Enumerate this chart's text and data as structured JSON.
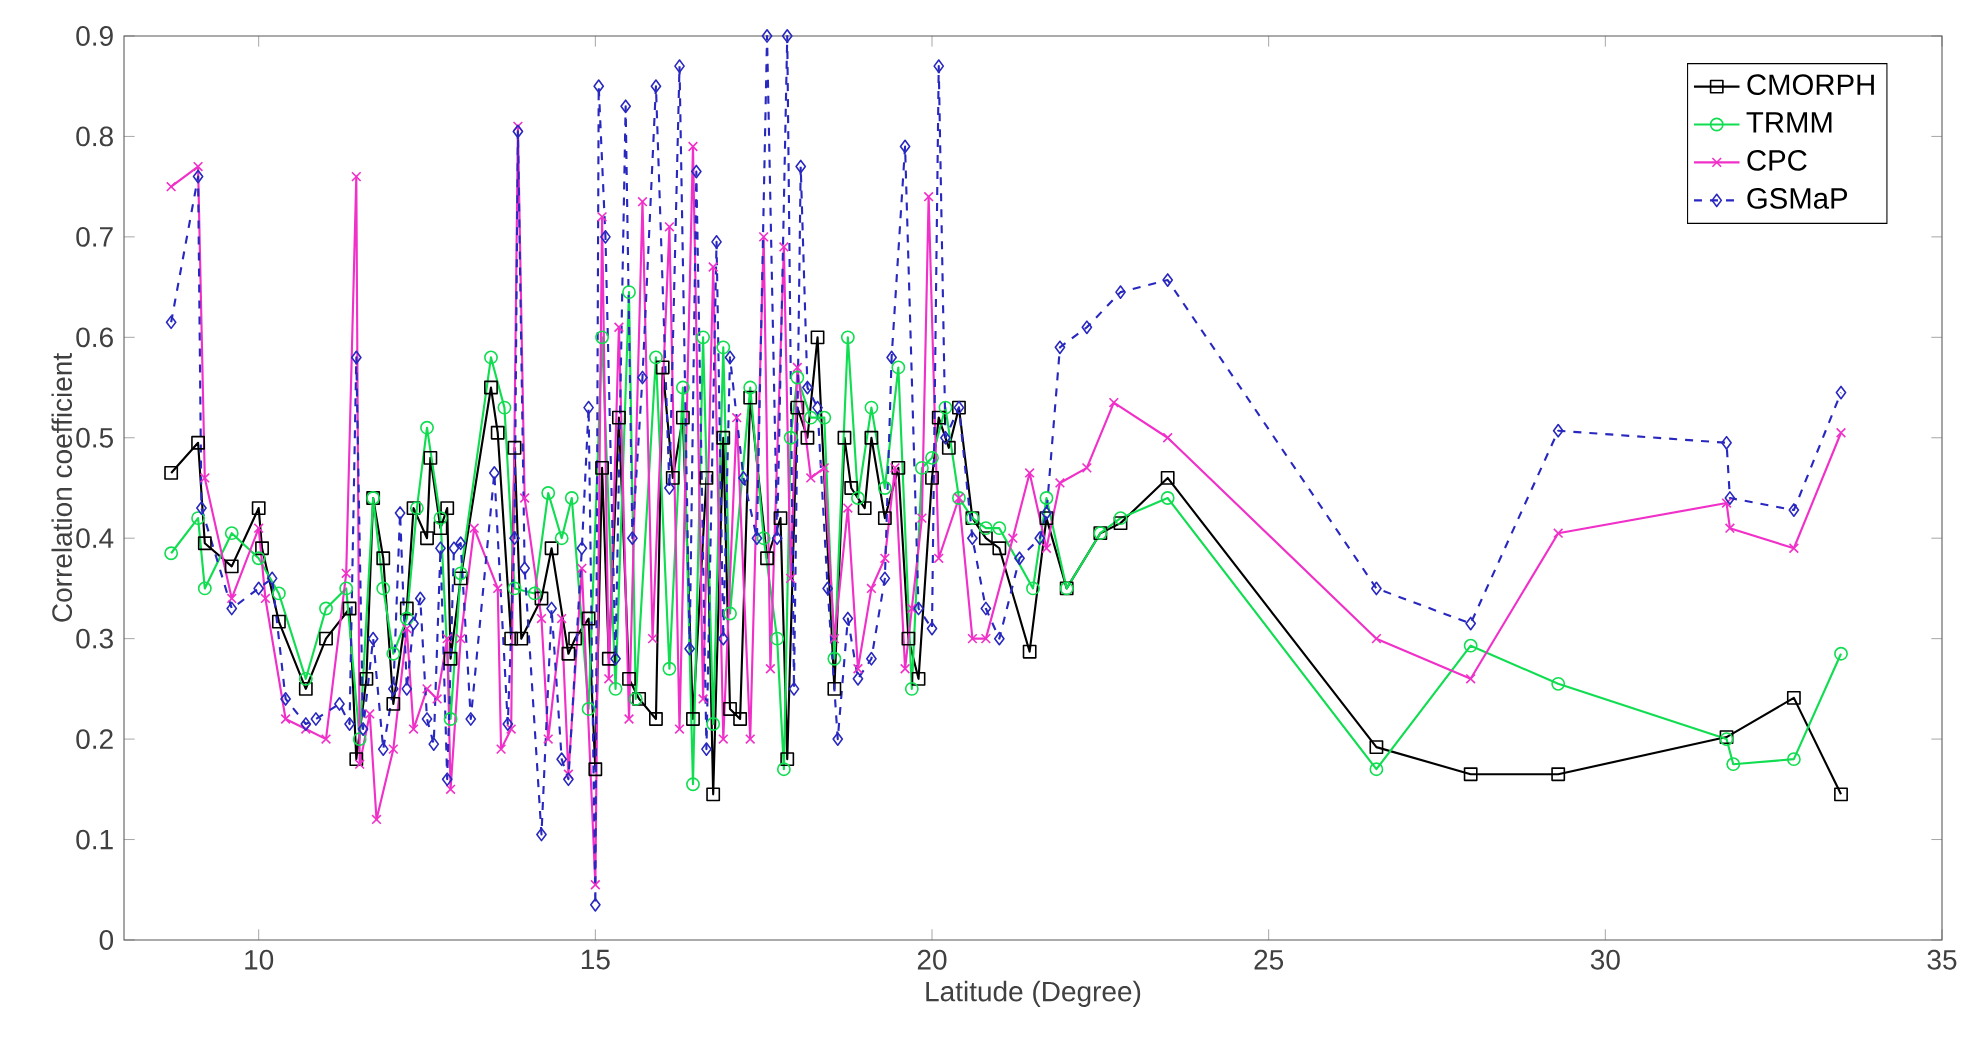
{
  "chart_data": {
    "type": "line",
    "xlabel": "Latitude (Degree)",
    "ylabel": "Correlation coefficient",
    "xlim": [
      8,
      35
    ],
    "ylim": [
      0,
      0.9
    ],
    "xticks": [
      10,
      15,
      20,
      25,
      30,
      35
    ],
    "yticks": [
      0,
      0.1,
      0.2,
      0.3,
      0.4,
      0.5,
      0.6,
      0.7,
      0.8,
      0.9
    ],
    "legend": "top right",
    "series": [
      {
        "name": "CMORPH",
        "color": "#000000",
        "marker": "square",
        "line_style": "solid",
        "x": [
          8.7,
          9.1,
          9.2,
          9.6,
          10.0,
          10.05,
          10.3,
          10.7,
          11.0,
          11.35,
          11.45,
          11.6,
          11.7,
          11.85,
          12.0,
          12.2,
          12.3,
          12.5,
          12.55,
          12.7,
          12.8,
          12.85,
          13.0,
          13.45,
          13.55,
          13.75,
          13.8,
          13.9,
          14.2,
          14.35,
          14.6,
          14.7,
          14.9,
          15.0,
          15.1,
          15.2,
          15.35,
          15.5,
          15.65,
          15.9,
          16.0,
          16.15,
          16.3,
          16.45,
          16.65,
          16.75,
          16.9,
          17.0,
          17.15,
          17.3,
          17.55,
          17.75,
          17.85,
          18.0,
          18.15,
          18.3,
          18.55,
          18.7,
          18.8,
          19.0,
          19.1,
          19.3,
          19.5,
          19.65,
          19.8,
          20.0,
          20.1,
          20.25,
          20.4,
          20.6,
          20.8,
          21.0,
          21.45,
          21.7,
          22.0,
          22.5,
          22.8,
          23.5,
          26.6,
          28.0,
          29.3,
          31.8,
          32.8,
          33.5
        ],
        "values": [
          0.465,
          0.495,
          0.395,
          0.372,
          0.43,
          0.39,
          0.317,
          0.25,
          0.3,
          0.33,
          0.18,
          0.26,
          0.44,
          0.38,
          0.235,
          0.33,
          0.43,
          0.4,
          0.48,
          0.41,
          0.43,
          0.28,
          0.36,
          0.55,
          0.505,
          0.3,
          0.49,
          0.3,
          0.34,
          0.39,
          0.285,
          0.3,
          0.32,
          0.17,
          0.47,
          0.28,
          0.52,
          0.26,
          0.24,
          0.22,
          0.57,
          0.46,
          0.52,
          0.22,
          0.46,
          0.145,
          0.5,
          0.23,
          0.22,
          0.54,
          0.38,
          0.42,
          0.18,
          0.53,
          0.5,
          0.6,
          0.25,
          0.5,
          0.45,
          0.43,
          0.5,
          0.42,
          0.47,
          0.3,
          0.26,
          0.46,
          0.52,
          0.49,
          0.53,
          0.42,
          0.4,
          0.39,
          0.287,
          0.42,
          0.35,
          0.405,
          0.415,
          0.46,
          0.192,
          0.165,
          0.165,
          0.202,
          0.241,
          0.145
        ]
      },
      {
        "name": "TRMM",
        "color": "#10dd50",
        "marker": "circle",
        "line_style": "solid",
        "x": [
          8.7,
          9.1,
          9.2,
          9.6,
          10.0,
          10.3,
          10.7,
          11.0,
          11.3,
          11.5,
          11.7,
          11.85,
          12.0,
          12.2,
          12.35,
          12.5,
          12.7,
          12.85,
          13.0,
          13.45,
          13.65,
          13.8,
          14.1,
          14.3,
          14.5,
          14.65,
          14.9,
          15.1,
          15.3,
          15.5,
          15.6,
          15.9,
          16.1,
          16.3,
          16.45,
          16.6,
          16.75,
          16.9,
          17.0,
          17.3,
          17.5,
          17.7,
          17.8,
          17.9,
          18.0,
          18.2,
          18.4,
          18.55,
          18.75,
          18.9,
          19.1,
          19.3,
          19.5,
          19.7,
          19.85,
          20.0,
          20.2,
          20.4,
          20.6,
          20.8,
          21.0,
          21.5,
          21.7,
          22.0,
          22.5,
          22.8,
          23.5,
          26.6,
          28.0,
          29.3,
          31.8,
          31.9,
          32.8,
          33.5
        ],
        "values": [
          0.385,
          0.42,
          0.35,
          0.405,
          0.38,
          0.345,
          0.26,
          0.33,
          0.35,
          0.2,
          0.44,
          0.35,
          0.285,
          0.32,
          0.43,
          0.51,
          0.42,
          0.22,
          0.365,
          0.58,
          0.53,
          0.35,
          0.345,
          0.445,
          0.4,
          0.44,
          0.23,
          0.6,
          0.25,
          0.645,
          0.24,
          0.58,
          0.27,
          0.55,
          0.155,
          0.6,
          0.215,
          0.59,
          0.325,
          0.55,
          0.4,
          0.3,
          0.17,
          0.5,
          0.56,
          0.52,
          0.52,
          0.28,
          0.6,
          0.44,
          0.53,
          0.45,
          0.57,
          0.25,
          0.47,
          0.48,
          0.53,
          0.44,
          0.42,
          0.41,
          0.41,
          0.35,
          0.44,
          0.35,
          0.405,
          0.42,
          0.44,
          0.17,
          0.293,
          0.255,
          0.2,
          0.175,
          0.18,
          0.285
        ]
      },
      {
        "name": "CPC",
        "color": "#f030c8",
        "marker": "cross",
        "line_style": "solid",
        "x": [
          8.7,
          9.1,
          9.2,
          9.6,
          10.0,
          10.1,
          10.4,
          10.7,
          11.0,
          11.3,
          11.45,
          11.5,
          11.65,
          11.75,
          12.0,
          12.2,
          12.3,
          12.5,
          12.65,
          12.8,
          12.85,
          13.0,
          13.2,
          13.55,
          13.6,
          13.75,
          13.85,
          13.95,
          14.2,
          14.3,
          14.5,
          14.6,
          14.8,
          15.0,
          15.1,
          15.2,
          15.35,
          15.5,
          15.7,
          15.85,
          16.1,
          16.25,
          16.45,
          16.6,
          16.75,
          16.9,
          17.1,
          17.3,
          17.5,
          17.6,
          17.8,
          17.9,
          18.0,
          18.2,
          18.4,
          18.55,
          18.75,
          18.9,
          19.1,
          19.3,
          19.45,
          19.6,
          19.7,
          19.85,
          19.95,
          20.1,
          20.4,
          20.6,
          20.8,
          21.2,
          21.45,
          21.7,
          21.9,
          22.3,
          22.7,
          23.5,
          26.6,
          28.0,
          29.3,
          31.8,
          31.85,
          32.8,
          33.5
        ],
        "values": [
          0.75,
          0.77,
          0.46,
          0.34,
          0.41,
          0.34,
          0.22,
          0.21,
          0.2,
          0.365,
          0.76,
          0.175,
          0.225,
          0.12,
          0.19,
          0.31,
          0.21,
          0.25,
          0.24,
          0.3,
          0.15,
          0.3,
          0.41,
          0.35,
          0.19,
          0.21,
          0.81,
          0.44,
          0.32,
          0.2,
          0.32,
          0.165,
          0.37,
          0.055,
          0.72,
          0.26,
          0.61,
          0.22,
          0.735,
          0.3,
          0.71,
          0.21,
          0.79,
          0.24,
          0.67,
          0.2,
          0.52,
          0.2,
          0.7,
          0.27,
          0.69,
          0.36,
          0.57,
          0.46,
          0.47,
          0.3,
          0.43,
          0.27,
          0.35,
          0.38,
          0.47,
          0.27,
          0.33,
          0.42,
          0.74,
          0.38,
          0.44,
          0.3,
          0.3,
          0.4,
          0.465,
          0.39,
          0.455,
          0.47,
          0.535,
          0.5,
          0.3,
          0.26,
          0.405,
          0.435,
          0.41,
          0.39,
          0.505
        ]
      },
      {
        "name": "GSMaP",
        "color": "#2828c0",
        "marker": "diamond",
        "line_style": "dashed",
        "x": [
          8.7,
          9.1,
          9.15,
          9.6,
          10.0,
          10.2,
          10.4,
          10.7,
          10.85,
          11.2,
          11.35,
          11.45,
          11.55,
          11.7,
          11.85,
          12.0,
          12.1,
          12.2,
          12.3,
          12.4,
          12.5,
          12.6,
          12.7,
          12.8,
          12.9,
          13.0,
          13.15,
          13.5,
          13.7,
          13.8,
          13.85,
          13.95,
          14.2,
          14.35,
          14.5,
          14.6,
          14.8,
          14.9,
          15.0,
          15.05,
          15.15,
          15.3,
          15.45,
          15.55,
          15.7,
          15.9,
          16.1,
          16.25,
          16.4,
          16.5,
          16.65,
          16.8,
          16.9,
          17.0,
          17.2,
          17.4,
          17.55,
          17.7,
          17.85,
          17.95,
          18.05,
          18.15,
          18.3,
          18.45,
          18.6,
          18.75,
          18.9,
          19.1,
          19.3,
          19.4,
          19.6,
          19.8,
          20.0,
          20.1,
          20.2,
          20.4,
          20.6,
          20.8,
          21.0,
          21.3,
          21.6,
          21.7,
          21.9,
          22.3,
          22.8,
          23.5,
          26.6,
          28.0,
          29.3,
          31.8,
          31.85,
          32.8,
          33.5
        ],
        "values": [
          0.615,
          0.76,
          0.43,
          0.33,
          0.35,
          0.36,
          0.24,
          0.215,
          0.22,
          0.235,
          0.215,
          0.58,
          0.21,
          0.3,
          0.19,
          0.25,
          0.425,
          0.25,
          0.315,
          0.34,
          0.22,
          0.195,
          0.39,
          0.16,
          0.39,
          0.395,
          0.22,
          0.465,
          0.215,
          0.4,
          0.805,
          0.37,
          0.105,
          0.33,
          0.18,
          0.16,
          0.39,
          0.53,
          0.035,
          0.85,
          0.7,
          0.28,
          0.83,
          0.4,
          0.56,
          0.85,
          0.45,
          0.87,
          0.29,
          0.765,
          0.19,
          0.695,
          0.3,
          0.58,
          0.46,
          0.4,
          0.9,
          0.4,
          0.9,
          0.25,
          0.77,
          0.55,
          0.53,
          0.35,
          0.2,
          0.32,
          0.26,
          0.28,
          0.36,
          0.58,
          0.79,
          0.33,
          0.31,
          0.87,
          0.5,
          0.53,
          0.4,
          0.33,
          0.3,
          0.38,
          0.4,
          0.425,
          0.59,
          0.61,
          0.645,
          0.657,
          0.35,
          0.315,
          0.507,
          0.495,
          0.44,
          0.428,
          0.545
        ]
      }
    ]
  }
}
